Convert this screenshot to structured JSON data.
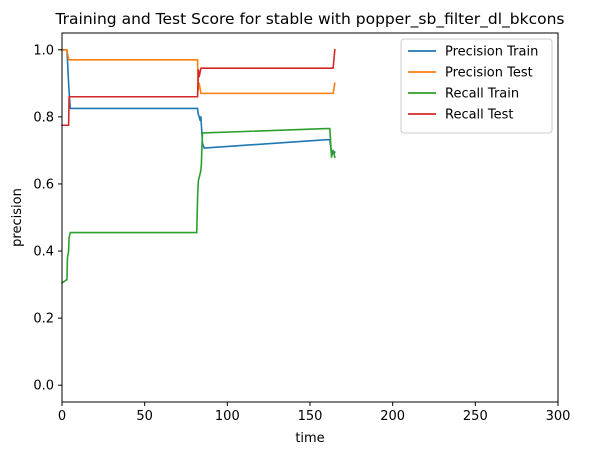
{
  "chart_data": {
    "type": "line",
    "title": "Training and Test Score for stable with popper_sb_filter_dl_bkcons",
    "xlabel": "time",
    "ylabel": "precision",
    "xlim": [
      0,
      300
    ],
    "ylim": [
      -0.05,
      1.05
    ],
    "xticks": [
      0,
      50,
      100,
      150,
      200,
      250,
      300
    ],
    "yticks": [
      0.0,
      0.2,
      0.4,
      0.6,
      0.8,
      1.0
    ],
    "grid": false,
    "legend_position": "top-right",
    "series": [
      {
        "name": "Precision Train",
        "color": "#1f77b4",
        "points": [
          [
            0,
            1.0
          ],
          [
            3,
            1.0
          ],
          [
            3.5,
            0.95
          ],
          [
            4,
            0.9
          ],
          [
            4.5,
            0.86
          ],
          [
            5,
            0.825
          ],
          [
            82,
            0.825
          ],
          [
            82.3,
            0.81
          ],
          [
            83,
            0.8
          ],
          [
            83.5,
            0.79
          ],
          [
            84,
            0.8
          ],
          [
            85,
            0.72
          ],
          [
            86,
            0.707
          ],
          [
            160,
            0.732
          ],
          [
            162,
            0.732
          ],
          [
            163,
            0.69
          ],
          [
            164,
            0.7
          ],
          [
            164.5,
            0.69
          ],
          [
            165,
            0.695
          ]
        ]
      },
      {
        "name": "Precision Test",
        "color": "#ff7f0e",
        "points": [
          [
            0,
            1.0
          ],
          [
            3,
            1.0
          ],
          [
            3.5,
            0.985
          ],
          [
            4,
            0.97
          ],
          [
            82,
            0.97
          ],
          [
            82.3,
            0.88
          ],
          [
            83,
            0.9
          ],
          [
            84,
            0.87
          ],
          [
            164,
            0.87
          ],
          [
            165,
            0.9
          ]
        ]
      },
      {
        "name": "Recall Train",
        "color": "#2ca02c",
        "points": [
          [
            0,
            0.305
          ],
          [
            3,
            0.315
          ],
          [
            3.3,
            0.38
          ],
          [
            4,
            0.4
          ],
          [
            4.3,
            0.44
          ],
          [
            5,
            0.455
          ],
          [
            81,
            0.455
          ],
          [
            81.5,
            0.455
          ],
          [
            82,
            0.56
          ],
          [
            82.5,
            0.61
          ],
          [
            83,
            0.62
          ],
          [
            84,
            0.64
          ],
          [
            84.3,
            0.66
          ],
          [
            84.7,
            0.72
          ],
          [
            85,
            0.752
          ],
          [
            160,
            0.765
          ],
          [
            162,
            0.765
          ],
          [
            163,
            0.68
          ],
          [
            164,
            0.7
          ],
          [
            165,
            0.68
          ]
        ]
      },
      {
        "name": "Recall Test",
        "color": "#d62728",
        "points": [
          [
            0,
            0.775
          ],
          [
            3,
            0.775
          ],
          [
            4,
            0.775
          ],
          [
            4.3,
            0.86
          ],
          [
            5,
            0.86
          ],
          [
            82,
            0.86
          ],
          [
            82.5,
            0.94
          ],
          [
            83,
            0.92
          ],
          [
            84,
            0.945
          ],
          [
            164,
            0.945
          ],
          [
            165,
            1.0
          ]
        ]
      }
    ]
  }
}
